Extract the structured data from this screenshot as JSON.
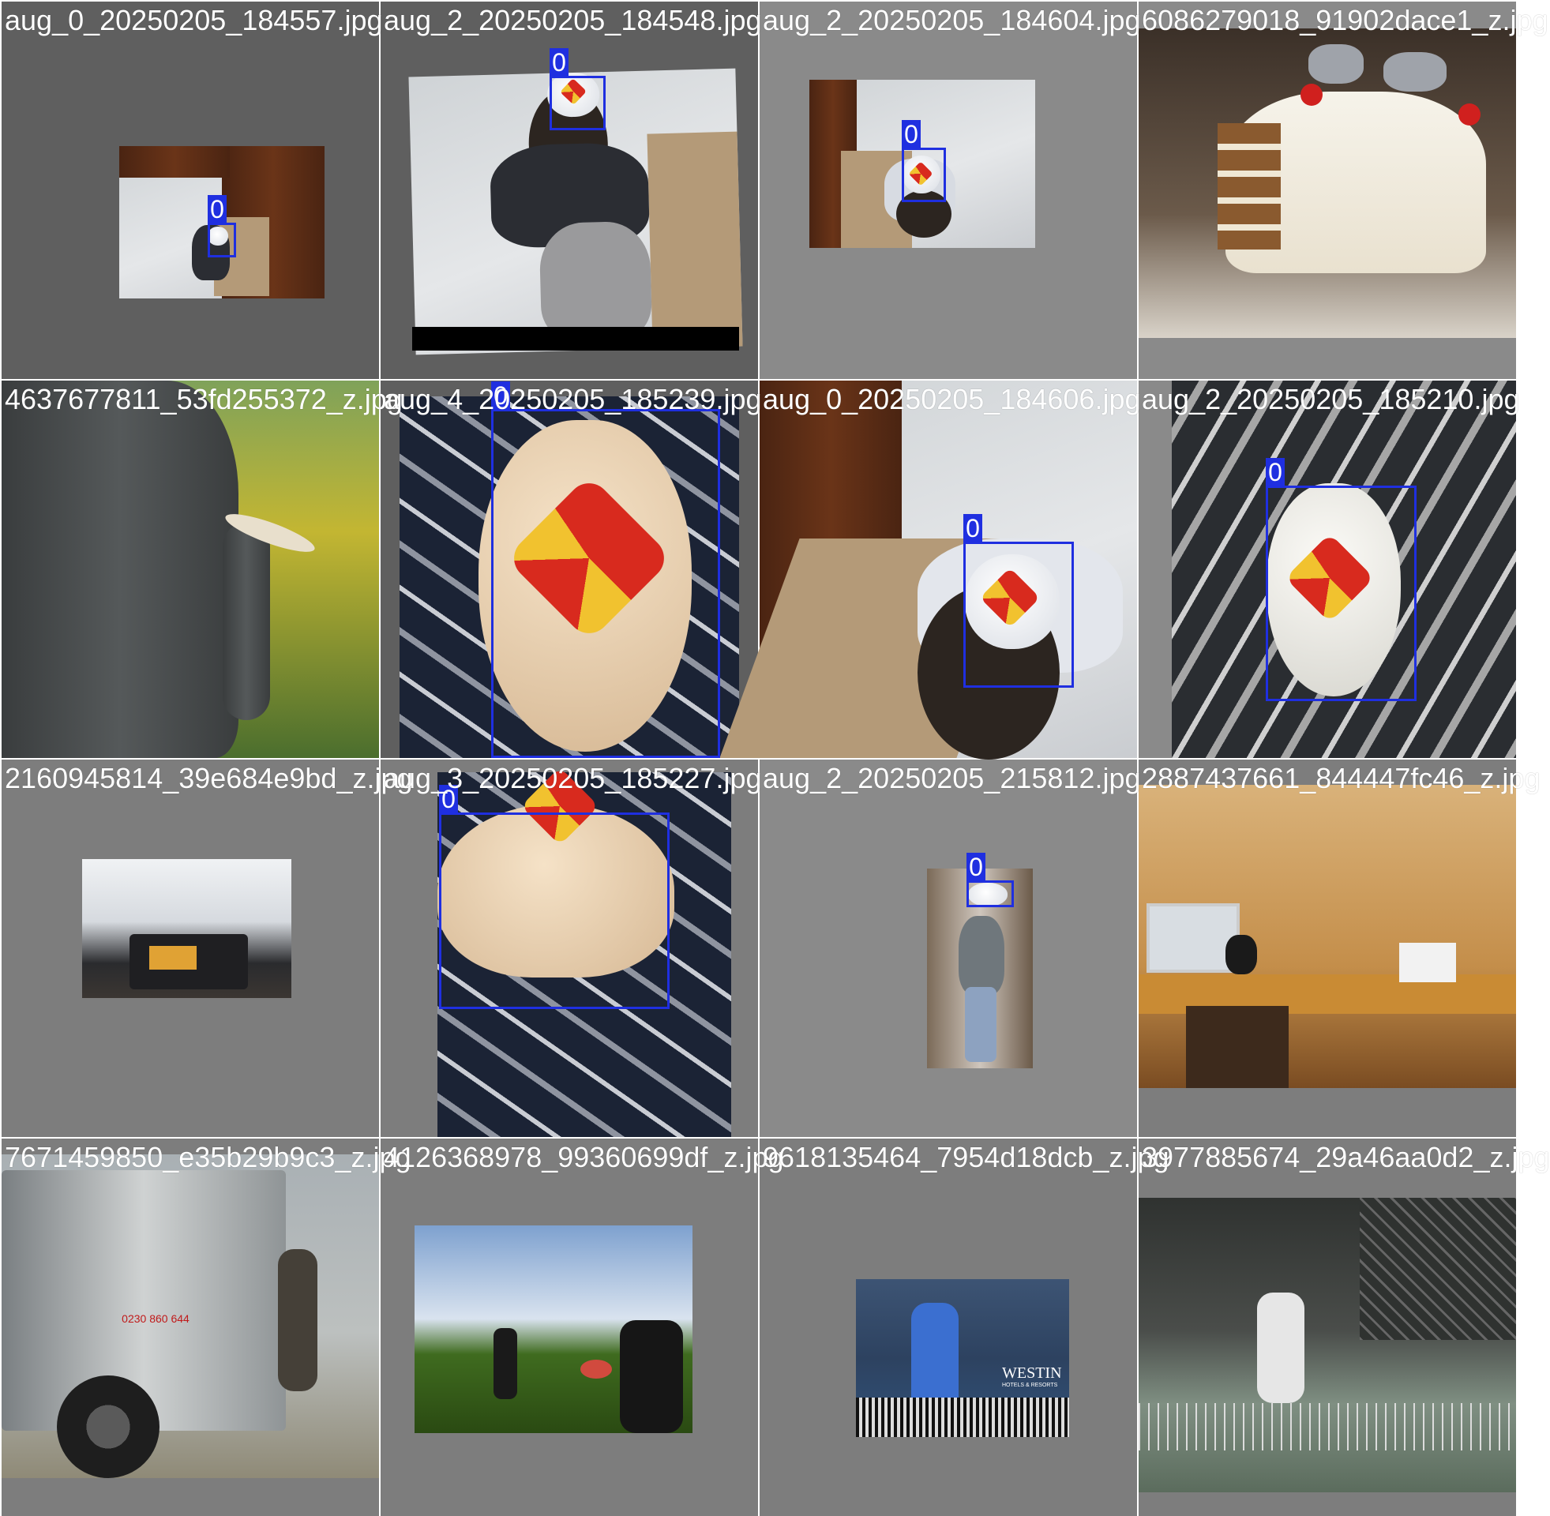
{
  "tiles": [
    {
      "filename": "aug_0_20250205_184557.jpg",
      "boxes": [
        {
          "label": "0"
        }
      ]
    },
    {
      "filename": "aug_2_20250205_184548.jpg",
      "boxes": [
        {
          "label": "0"
        }
      ]
    },
    {
      "filename": "aug_2_20250205_184604.jpg",
      "boxes": [
        {
          "label": "0"
        }
      ]
    },
    {
      "filename": "6086279018_91902dace1_z.jpg",
      "boxes": []
    },
    {
      "filename": "4637677811_53fd255372_z.jpg",
      "boxes": []
    },
    {
      "filename": "aug_4_20250205_185239.jpg",
      "boxes": [
        {
          "label": "0"
        }
      ]
    },
    {
      "filename": "aug_0_20250205_184606.jpg",
      "boxes": [
        {
          "label": "0"
        }
      ]
    },
    {
      "filename": "aug_2_20250205_185210.jpg",
      "boxes": [
        {
          "label": "0"
        }
      ]
    },
    {
      "filename": "2160945814_39e684e9bd_z.jpg",
      "boxes": []
    },
    {
      "filename": "aug_3_20250205_185227.jpg",
      "boxes": [
        {
          "label": "0"
        }
      ]
    },
    {
      "filename": "aug_2_20250205_215812.jpg",
      "boxes": [
        {
          "label": "0"
        }
      ]
    },
    {
      "filename": "2887437661_844447fc46_z.jpg",
      "boxes": []
    },
    {
      "filename": "7671459850_e35b29b9c3_z.jpg",
      "boxes": []
    },
    {
      "filename": "4126368978_99360699df_z.jpg",
      "boxes": []
    },
    {
      "filename": "9618135464_7954d18dcb_z.jpg",
      "boxes": []
    },
    {
      "filename": "3977885674_29a46aa0d2_z.jpg",
      "boxes": []
    }
  ],
  "photo_text": {
    "westin": "WESTIN",
    "westin_sub": "HOTELS & RESORTS",
    "truck_plate": "0230 860 644"
  },
  "colors": {
    "box": "#1f2fe0",
    "label_text": "#ffffff",
    "background_dark": "#5f5f5f",
    "background_grey": "#8a8a8a"
  }
}
